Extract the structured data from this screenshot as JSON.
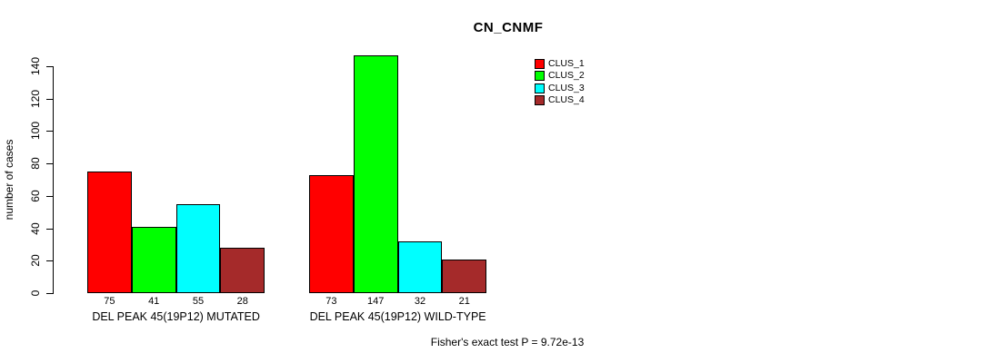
{
  "chart_data": {
    "type": "bar",
    "title": "CN_CNMF",
    "ylabel": "number of cases",
    "ylim": [
      0,
      140
    ],
    "yticks": [
      0,
      20,
      40,
      60,
      80,
      100,
      120,
      140
    ],
    "grid": false,
    "legend_position": "top-right",
    "series": [
      {
        "name": "CLUS_1",
        "color": "#FF0000"
      },
      {
        "name": "CLUS_2",
        "color": "#00FF00"
      },
      {
        "name": "CLUS_3",
        "color": "#00FFFF"
      },
      {
        "name": "CLUS_4",
        "color": "#A52A2A"
      }
    ],
    "categories": [
      "DEL PEAK 45(19P12) MUTATED",
      "DEL PEAK 45(19P12) WILD-TYPE"
    ],
    "groups": [
      {
        "label": "DEL PEAK 45(19P12) MUTATED",
        "values": [
          75,
          41,
          55,
          28
        ]
      },
      {
        "label": "DEL PEAK 45(19P12) WILD-TYPE",
        "values": [
          73,
          147,
          32,
          21
        ]
      }
    ],
    "footnote": "Fisher's exact test P = 9.72e-13"
  }
}
